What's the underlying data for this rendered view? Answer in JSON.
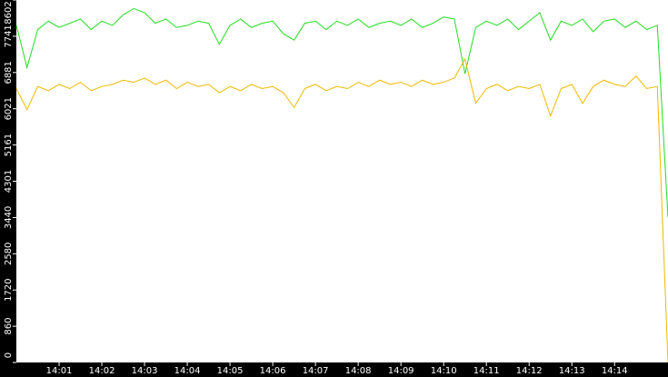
{
  "chart_data": {
    "type": "line",
    "x": [
      0,
      0.25,
      0.5,
      0.75,
      1,
      1.25,
      1.5,
      1.75,
      2,
      2.25,
      2.5,
      2.75,
      3,
      3.25,
      3.5,
      3.75,
      4,
      4.25,
      4.5,
      4.75,
      5,
      5.25,
      5.5,
      5.75,
      6,
      6.25,
      6.5,
      6.75,
      7,
      7.25,
      7.5,
      7.75,
      8,
      8.25,
      8.5,
      8.75,
      9,
      9.25,
      9.5,
      9.75,
      10,
      10.25,
      10.5,
      10.75,
      11,
      11.25,
      11.5,
      11.75,
      12,
      12.25,
      12.5,
      12.75,
      13,
      13.25,
      13.5,
      13.75,
      14,
      14.25,
      14.5,
      14.75,
      15,
      15.25
    ],
    "series": [
      {
        "color": "#22dd22",
        "values": [
          8000,
          7000,
          7900,
          8100,
          7950,
          8050,
          8150,
          7900,
          8100,
          8000,
          8250,
          8400,
          8300,
          8050,
          8150,
          7950,
          8000,
          8100,
          8050,
          7550,
          8000,
          8150,
          7950,
          8050,
          8100,
          7800,
          7650,
          8050,
          8100,
          7900,
          8100,
          8000,
          8150,
          7950,
          8050,
          8100,
          8000,
          8150,
          7950,
          8050,
          8200,
          8150,
          6850,
          7950,
          8100,
          8000,
          8150,
          7900,
          8100,
          8300,
          7650,
          8100,
          8000,
          8150,
          7850,
          8100,
          8150,
          7950,
          8100,
          7900,
          8000,
          3440
        ]
      },
      {
        "color": "#f0b800",
        "values": [
          6500,
          6000,
          6550,
          6450,
          6600,
          6500,
          6650,
          6450,
          6550,
          6600,
          6700,
          6650,
          6750,
          6600,
          6700,
          6500,
          6650,
          6550,
          6600,
          6400,
          6550,
          6450,
          6600,
          6500,
          6550,
          6400,
          6050,
          6500,
          6600,
          6450,
          6550,
          6500,
          6650,
          6550,
          6700,
          6600,
          6650,
          6550,
          6700,
          6600,
          6650,
          6750,
          7200,
          6150,
          6500,
          6600,
          6450,
          6550,
          6500,
          6600,
          5850,
          6500,
          6600,
          6150,
          6550,
          6700,
          6600,
          6550,
          6800,
          6500,
          6550,
          0
        ]
      }
    ],
    "xlim": [
      0,
      15.25
    ],
    "xticks": [
      {
        "value": 1,
        "label": "14:01"
      },
      {
        "value": 2,
        "label": "14:02"
      },
      {
        "value": 3,
        "label": "14:03"
      },
      {
        "value": 4,
        "label": "14:04"
      },
      {
        "value": 5,
        "label": "14:05"
      },
      {
        "value": 6,
        "label": "14:06"
      },
      {
        "value": 7,
        "label": "14:07"
      },
      {
        "value": 8,
        "label": "14:08"
      },
      {
        "value": 9,
        "label": "14:09"
      },
      {
        "value": 10,
        "label": "14:10"
      },
      {
        "value": 11,
        "label": "14:11"
      },
      {
        "value": 12,
        "label": "14:12"
      },
      {
        "value": 13,
        "label": "14:13"
      },
      {
        "value": 14,
        "label": "14:14"
      }
    ],
    "ylim": [
      0,
      8602
    ],
    "yticks": [
      0,
      860,
      1720,
      2580,
      3440,
      4301,
      5161,
      6021,
      6881,
      7741,
      8602
    ]
  }
}
